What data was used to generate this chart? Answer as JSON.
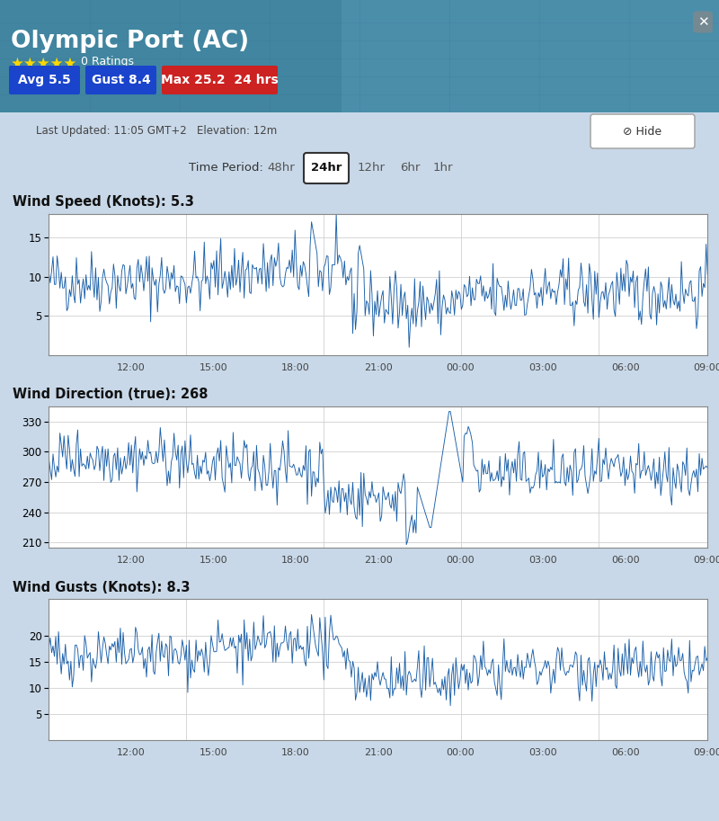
{
  "title": "Olympic Port (AC)",
  "subtitle_info": "Last Updated: 11:05 GMT+2   Elevation: 12m",
  "time_period_label": "Time Period:",
  "time_buttons": [
    "48hr",
    "24hr",
    "12hr",
    "6hr",
    "1hr"
  ],
  "active_button": "24hr",
  "avg_label": "Avg 5.5",
  "gust_label": "Gust 8.4",
  "max_label": "Max 25.2  24 hrs",
  "chart1_title": "Wind Speed (Knots): 5.3",
  "chart2_title": "Wind Direction (true): 268",
  "chart3_title": "Wind Gusts (Knots): 8.3",
  "x_ticks": [
    "12:00",
    "15:00",
    "18:00",
    "21:00",
    "00:00",
    "03:00",
    "06:00",
    "09:00"
  ],
  "chart1_ylim": [
    0,
    18
  ],
  "chart1_yticks": [
    5,
    10,
    15
  ],
  "chart2_ylim": [
    205,
    345
  ],
  "chart2_yticks": [
    210,
    240,
    270,
    300,
    330
  ],
  "chart3_ylim": [
    0,
    27
  ],
  "chart3_yticks": [
    5,
    10,
    15,
    20
  ],
  "line_color": "#1a5fa8",
  "bg_color": "#ffffff",
  "header_map_color": "#4a8fa8",
  "chart_section_bg": "#f0f0f0",
  "grid_color": "#d0d0d0",
  "stars_color": "#FFD700",
  "avg_btn_color": "#1a44cc",
  "gust_btn_color": "#1a44cc",
  "max_btn_color": "#cc2222",
  "outer_bg": "#c8d8e8"
}
